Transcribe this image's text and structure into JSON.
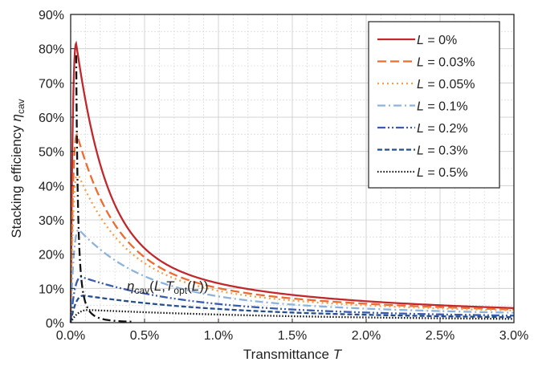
{
  "chart_data": {
    "type": "line",
    "xlabel": {
      "text": "Transmittance ",
      "var": "T"
    },
    "ylabel": {
      "text": "Stacking efficiency ",
      "var": "η",
      "sub": "cav"
    },
    "xlim": [
      0,
      0.03
    ],
    "ylim": [
      0,
      0.9
    ],
    "x_ticks": [
      "0.0%",
      "0.5%",
      "1.0%",
      "1.5%",
      "2.0%",
      "2.5%",
      "3.0%"
    ],
    "y_ticks": [
      "0%",
      "10%",
      "20%",
      "30%",
      "40%",
      "50%",
      "60%",
      "70%",
      "80%",
      "90%"
    ],
    "grid": true,
    "legend_position": "top-right",
    "series": [
      {
        "name": "L = 0%",
        "L": 0,
        "color": "#c0282d",
        "dash": "solid"
      },
      {
        "name": "L = 0.03%",
        "L": 0.0003,
        "color": "#ed6c32",
        "dash": "long-dash"
      },
      {
        "name": "L = 0.05%",
        "L": 0.0005,
        "color": "#f2a24a",
        "dash": "dot"
      },
      {
        "name": "L = 0.1%",
        "L": 0.001,
        "color": "#8db3dd",
        "dash": "dash-dot"
      },
      {
        "name": "L = 0.2%",
        "L": 0.002,
        "color": "#3a5cb0",
        "dash": "dash-dot-dot"
      },
      {
        "name": "L = 0.3%",
        "L": 0.003,
        "color": "#244f8c",
        "dash": "short-dash"
      },
      {
        "name": "L = 0.5%",
        "L": 0.005,
        "color": "#111111",
        "dash": "fine-dot"
      }
    ],
    "optimum_curve": {
      "label": "η_cav(L,T_opt(L))",
      "color": "#111111",
      "dash": "dash-dot"
    }
  }
}
